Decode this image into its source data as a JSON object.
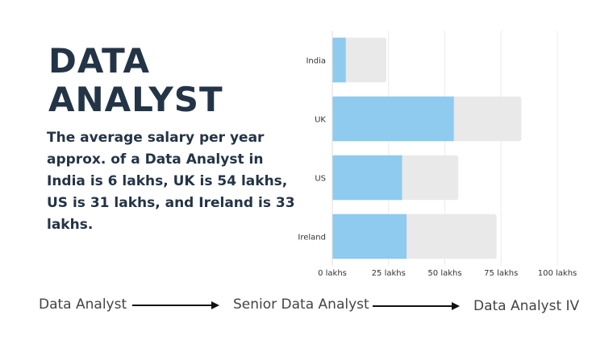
{
  "heading": {
    "line1": "DATA",
    "line2": "ANALYST"
  },
  "description": "The average salary per year approx. of a Data Analyst in India is 6 lakhs, UK is 54 lakhs, US is 31 lakhs, and Ireland is 33 lakhs.",
  "chart_data": {
    "type": "bar",
    "orientation": "horizontal",
    "categories": [
      "India",
      "UK",
      "US",
      "Ireland"
    ],
    "series": [
      {
        "values": [
          6,
          54,
          31,
          33
        ],
        "color": "#8ecbef"
      },
      {
        "values": [
          24,
          84,
          56,
          73
        ],
        "color": "#e9e9e9"
      }
    ],
    "x_ticks": [
      0,
      25,
      50,
      75,
      100
    ],
    "x_tick_labels": [
      "0 lakhs",
      "25 lakhs",
      "50 lakhs",
      "75 lakhs",
      "100 lakhs"
    ],
    "xlim": [
      0,
      100
    ],
    "grid": true,
    "legend": "none"
  },
  "career_path": {
    "steps": [
      "Data Analyst",
      "Senior Data Analyst",
      "Data Analyst IV"
    ]
  }
}
